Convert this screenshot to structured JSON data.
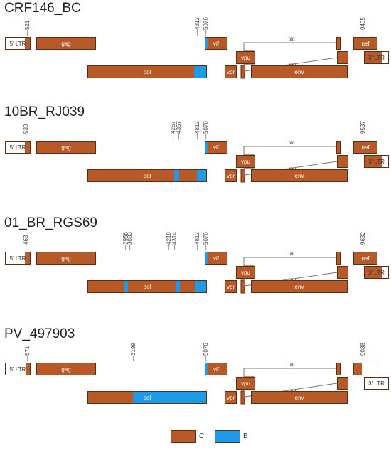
{
  "colors": {
    "C": "#B85A28",
    "B": "#1E9BE8",
    "ltr_fill": "#ffffff"
  },
  "legend": [
    {
      "label": "C",
      "color": "#B85A28"
    },
    {
      "label": "B",
      "color": "#1E9BE8"
    }
  ],
  "panels": [
    {
      "title": "CRF146_BC",
      "breakpoints": [
        "521",
        "4812",
        "5076",
        "9405"
      ],
      "genes": [
        {
          "label": "5' LTR",
          "segments": [
            "white",
            "C"
          ]
        },
        {
          "label": "gag",
          "segments": [
            "C"
          ]
        },
        {
          "label": "pol",
          "segments": [
            "C",
            "B"
          ]
        },
        {
          "label": "vif",
          "segments": [
            "B",
            "C"
          ]
        },
        {
          "label": "vpr",
          "segments": [
            "C"
          ]
        },
        {
          "label": "vpu",
          "segments": [
            "C"
          ]
        },
        {
          "label": "tat",
          "segments": [
            "C"
          ]
        },
        {
          "label": "rev",
          "segments": [
            "C"
          ]
        },
        {
          "label": "env",
          "segments": [
            "C"
          ]
        },
        {
          "label": "nef",
          "segments": [
            "C"
          ]
        },
        {
          "label": "3' LTR",
          "segments": [
            "C",
            "white"
          ]
        }
      ]
    },
    {
      "title": "10BR_RJ039",
      "breakpoints": [
        "530",
        "4267",
        "4357",
        "4812",
        "5076",
        "9537"
      ],
      "genes": [
        {
          "label": "5' LTR",
          "segments": [
            "white",
            "C"
          ]
        },
        {
          "label": "gag",
          "segments": [
            "C"
          ]
        },
        {
          "label": "pol",
          "segments": [
            "C",
            "B",
            "C",
            "B"
          ]
        },
        {
          "label": "vif",
          "segments": [
            "B",
            "C"
          ]
        },
        {
          "label": "vpr",
          "segments": [
            "C"
          ]
        },
        {
          "label": "vpu",
          "segments": [
            "C"
          ]
        },
        {
          "label": "tat",
          "segments": [
            "C"
          ]
        },
        {
          "label": "rev",
          "segments": [
            "C"
          ]
        },
        {
          "label": "env",
          "segments": [
            "C"
          ]
        },
        {
          "label": "nef",
          "segments": [
            "C"
          ]
        },
        {
          "label": "3' LTR",
          "segments": [
            "C",
            "white"
          ]
        }
      ]
    },
    {
      "title": "01_BR_RGS69",
      "breakpoints": [
        "463",
        "2986",
        "3083",
        "4218",
        "4314",
        "4812",
        "5076",
        "9632"
      ],
      "genes": [
        {
          "label": "5' LTR",
          "segments": [
            "white",
            "C"
          ]
        },
        {
          "label": "gag",
          "segments": [
            "C"
          ]
        },
        {
          "label": "pol",
          "segments": [
            "C",
            "B",
            "C",
            "B",
            "C",
            "B"
          ]
        },
        {
          "label": "vif",
          "segments": [
            "B",
            "C"
          ]
        },
        {
          "label": "vpr",
          "segments": [
            "C"
          ]
        },
        {
          "label": "vpu",
          "segments": [
            "C"
          ]
        },
        {
          "label": "tat",
          "segments": [
            "C"
          ]
        },
        {
          "label": "rev",
          "segments": [
            "C"
          ]
        },
        {
          "label": "env",
          "segments": [
            "C"
          ]
        },
        {
          "label": "nef",
          "segments": [
            "C"
          ]
        },
        {
          "label": "3' LTR",
          "segments": [
            "C",
            "white"
          ]
        }
      ]
    },
    {
      "title": "PV_497903",
      "breakpoints": [
        "571",
        "3199",
        "5076",
        "9038"
      ],
      "genes": [
        {
          "label": "5' LTR",
          "segments": [
            "white",
            "C"
          ]
        },
        {
          "label": "gag",
          "segments": [
            "C"
          ]
        },
        {
          "label": "pol",
          "segments": [
            "C",
            "B"
          ]
        },
        {
          "label": "vif",
          "segments": [
            "B",
            "C"
          ]
        },
        {
          "label": "vpr",
          "segments": [
            "C"
          ]
        },
        {
          "label": "vpu",
          "segments": [
            "C"
          ]
        },
        {
          "label": "tat",
          "segments": [
            "C"
          ]
        },
        {
          "label": "rev",
          "segments": [
            "C"
          ]
        },
        {
          "label": "env",
          "segments": [
            "C"
          ]
        },
        {
          "label": "nef",
          "segments": [
            "C",
            "white"
          ]
        },
        {
          "label": "3' LTR",
          "segments": [
            "white"
          ]
        }
      ]
    }
  ]
}
